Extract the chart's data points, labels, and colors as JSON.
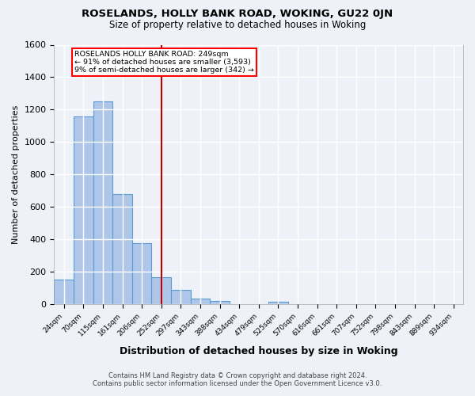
{
  "title1": "ROSELANDS, HOLLY BANK ROAD, WOKING, GU22 0JN",
  "title2": "Size of property relative to detached houses in Woking",
  "xlabel": "Distribution of detached houses by size in Woking",
  "ylabel": "Number of detached properties",
  "categories": [
    "24sqm",
    "70sqm",
    "115sqm",
    "161sqm",
    "206sqm",
    "252sqm",
    "297sqm",
    "343sqm",
    "388sqm",
    "434sqm",
    "479sqm",
    "525sqm",
    "570sqm",
    "616sqm",
    "661sqm",
    "707sqm",
    "752sqm",
    "798sqm",
    "843sqm",
    "889sqm",
    "934sqm"
  ],
  "values": [
    150,
    1160,
    1250,
    680,
    375,
    165,
    90,
    37,
    20,
    0,
    0,
    14,
    0,
    0,
    0,
    0,
    0,
    0,
    0,
    0,
    0
  ],
  "bar_color": "#aec6e8",
  "bar_edge_color": "#5b9bd5",
  "red_line_x": 5,
  "annotation_line1": "ROSELANDS HOLLY BANK ROAD: 249sqm",
  "annotation_line2": "← 91% of detached houses are smaller (3,593)",
  "annotation_line3": "9% of semi-detached houses are larger (342) →",
  "annotation_box_color": "white",
  "annotation_box_edge_color": "red",
  "red_line_color": "#c00000",
  "ylim": [
    0,
    1600
  ],
  "yticks": [
    0,
    200,
    400,
    600,
    800,
    1000,
    1200,
    1400,
    1600
  ],
  "footer1": "Contains HM Land Registry data © Crown copyright and database right 2024.",
  "footer2": "Contains public sector information licensed under the Open Government Licence v3.0.",
  "background_color": "#eef2f8",
  "grid_color": "white"
}
